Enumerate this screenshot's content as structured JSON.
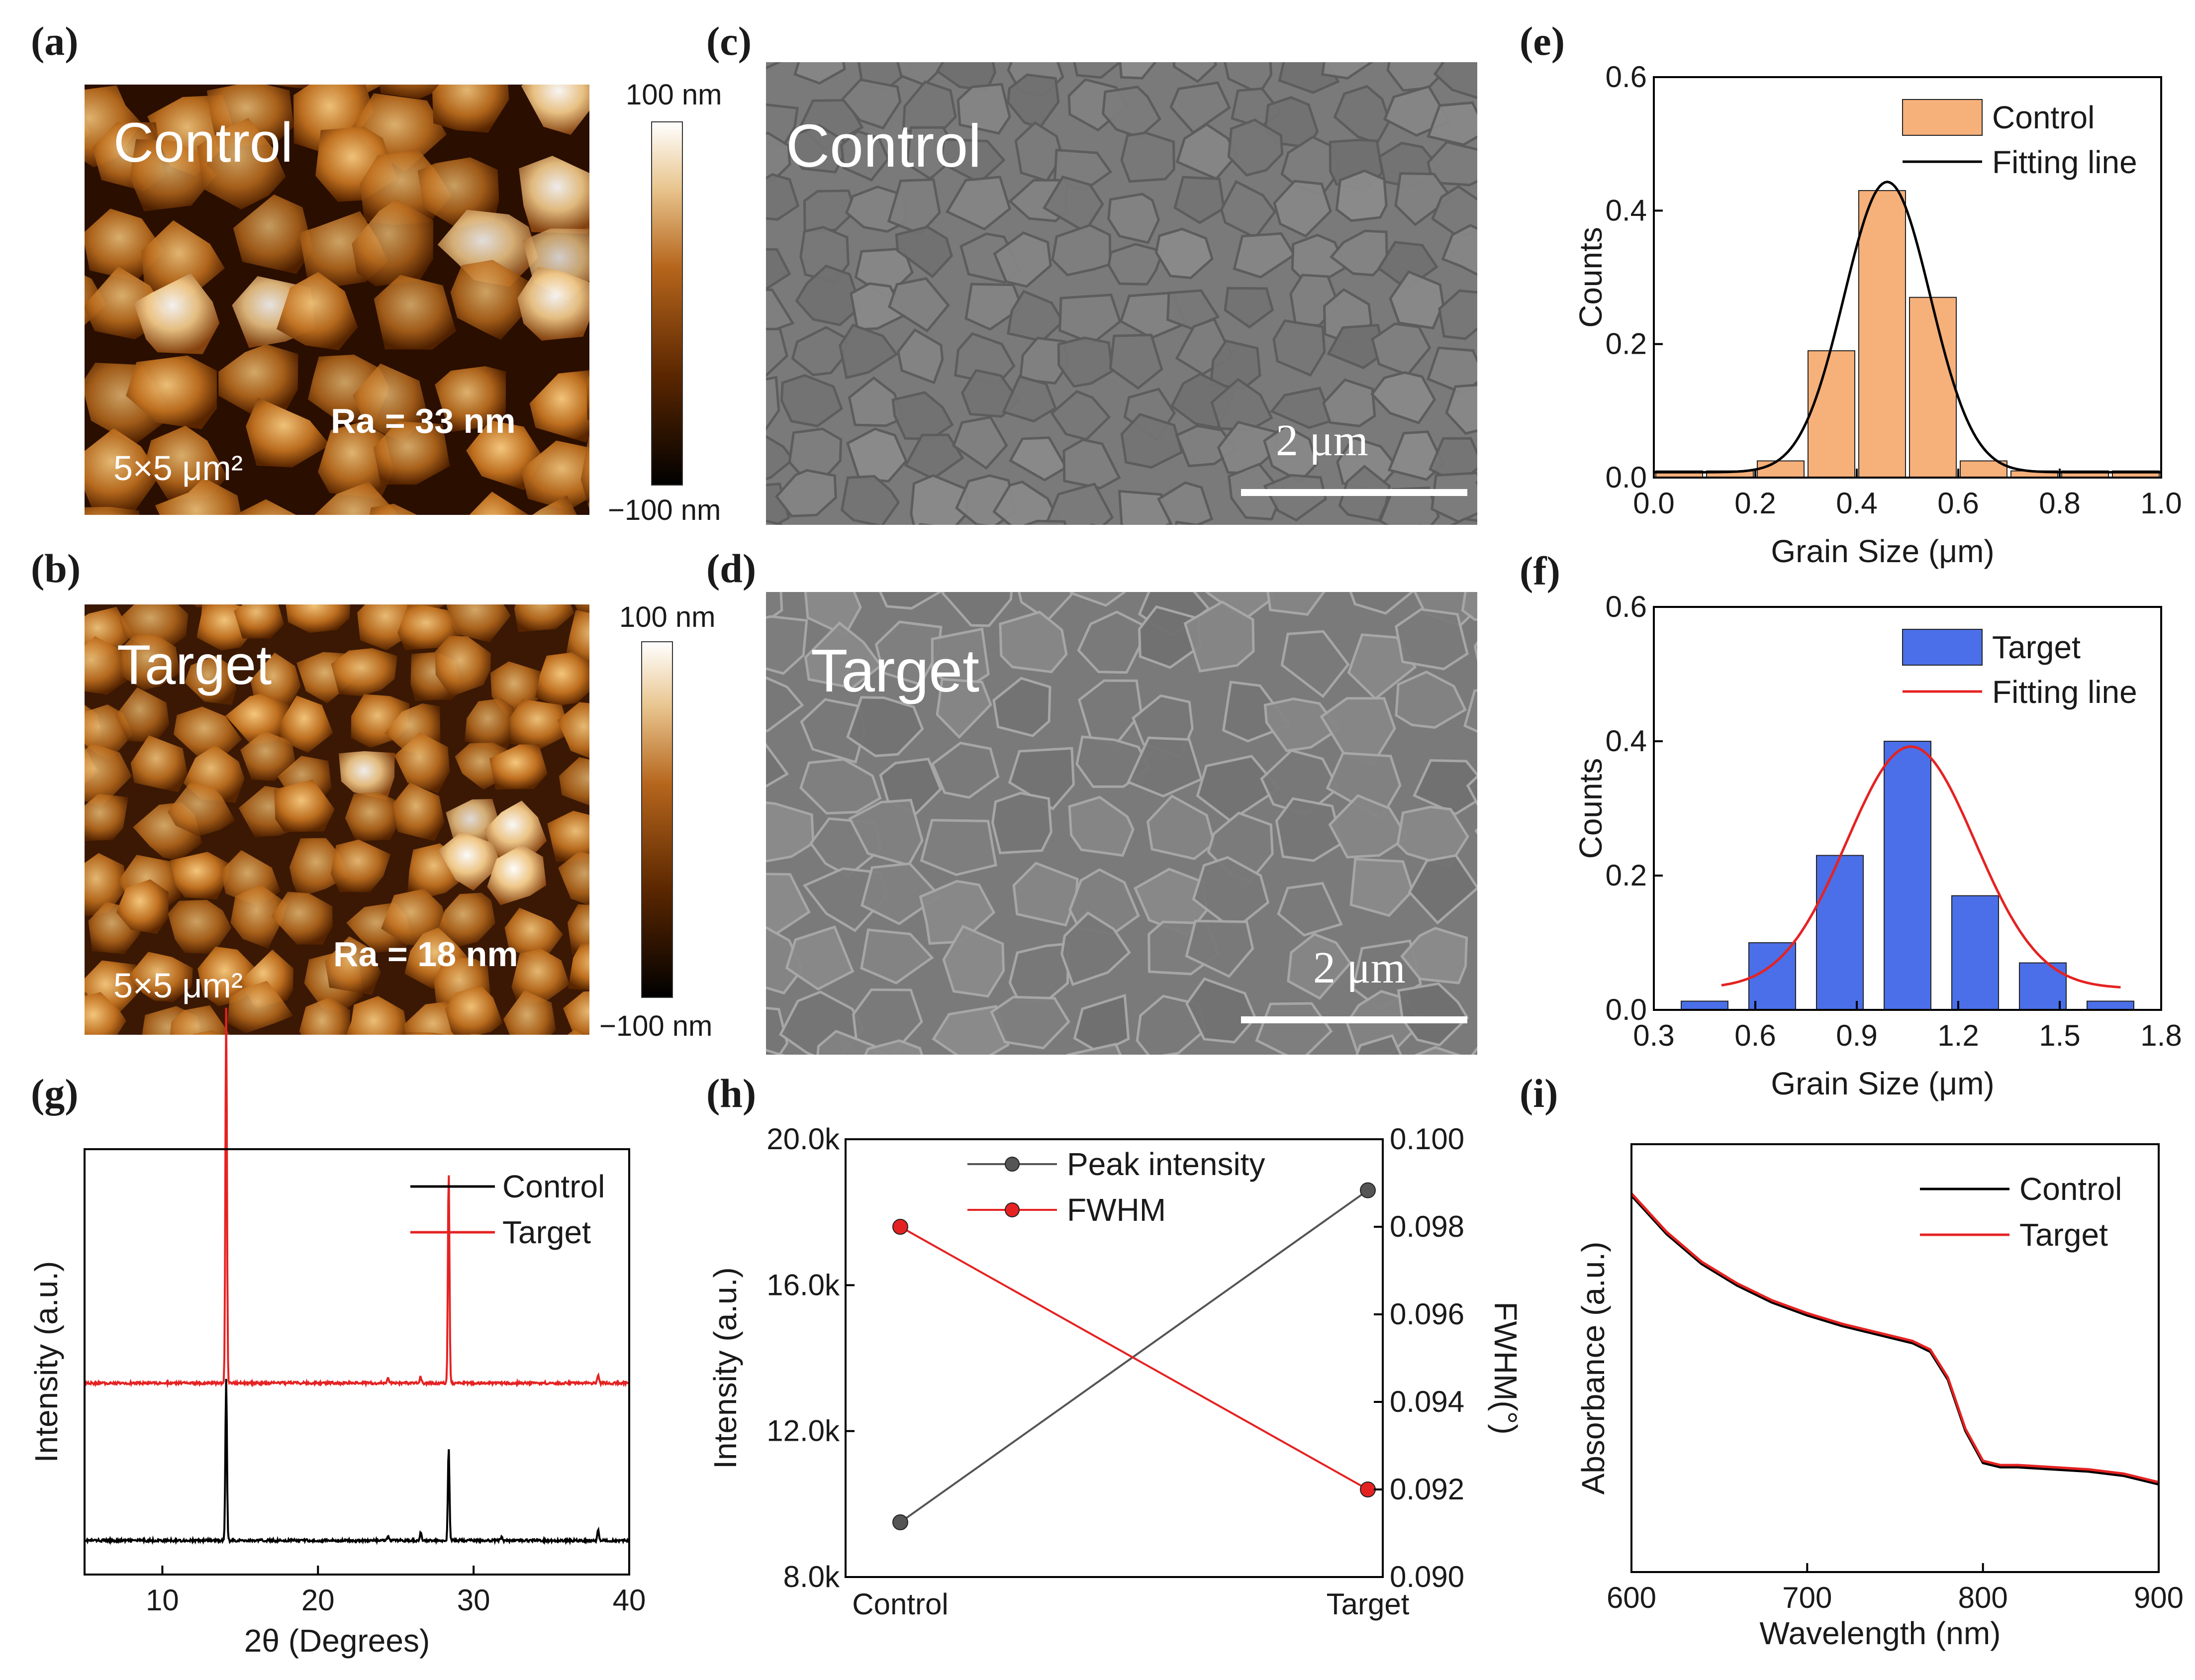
{
  "panels": {
    "a": {
      "label": "(a)",
      "sample": "Control",
      "ra": "Ra = 33 nm",
      "area": "5×5 μm²",
      "cb_top": "100 nm",
      "cb_bottom": "−100 nm"
    },
    "b": {
      "label": "(b)",
      "sample": "Target",
      "ra": "Ra = 18 nm",
      "area": "5×5 μm²",
      "cb_top": "100 nm",
      "cb_bottom": "−100 nm"
    },
    "c": {
      "label": "(c)",
      "sample": "Control",
      "scale": "2 μm"
    },
    "d": {
      "label": "(d)",
      "sample": "Target",
      "scale": "2 μm"
    },
    "e": {
      "label": "(e)"
    },
    "f": {
      "label": "(f)"
    },
    "g": {
      "label": "(g)"
    },
    "h": {
      "label": "(h)"
    },
    "i": {
      "label": "(i)"
    }
  },
  "chart_data": [
    {
      "id": "e",
      "type": "bar",
      "xlabel": "Grain Size (μm)",
      "ylabel": "Counts",
      "xlim": [
        0,
        1.0
      ],
      "ylim": [
        0,
        0.6
      ],
      "xticks": [
        "0.0",
        "0.2",
        "0.4",
        "0.6",
        "0.8",
        "1.0"
      ],
      "yticks": [
        "0.0",
        "0.2",
        "0.4",
        "0.6"
      ],
      "bar_width": 0.1,
      "bar_centers": [
        0.05,
        0.15,
        0.25,
        0.35,
        0.45,
        0.55,
        0.65,
        0.75,
        0.85,
        0.95
      ],
      "values": [
        0.01,
        0.01,
        0.025,
        0.19,
        0.43,
        0.27,
        0.025,
        0.01,
        0.01,
        0.01
      ],
      "fit": {
        "type": "gaussian",
        "center": 0.46,
        "sigma": 0.085,
        "peak": 0.435,
        "base": 0.008
      },
      "legend": [
        {
          "name": "Control",
          "kind": "bar"
        },
        {
          "name": "Fitting line",
          "kind": "line"
        }
      ],
      "colors": {
        "bar": "#f6b07a",
        "fit": "#000000"
      }
    },
    {
      "id": "f",
      "type": "bar",
      "xlabel": "Grain Size (μm)",
      "ylabel": "Counts",
      "xlim": [
        0.3,
        1.8
      ],
      "ylim": [
        0,
        0.6
      ],
      "xticks": [
        "0.3",
        "0.6",
        "0.9",
        "1.2",
        "1.5",
        "1.8"
      ],
      "yticks": [
        "0.0",
        "0.2",
        "0.4",
        "0.6"
      ],
      "bar_width": 0.15,
      "bar_centers": [
        0.45,
        0.65,
        0.85,
        1.05,
        1.25,
        1.45,
        1.65
      ],
      "values": [
        0.013,
        0.1,
        0.23,
        0.4,
        0.17,
        0.07,
        0.013
      ],
      "fit": {
        "type": "gaussian",
        "center": 1.06,
        "sigma": 0.19,
        "peak": 0.36,
        "base": 0.032,
        "xrange": [
          0.5,
          1.68
        ]
      },
      "legend": [
        {
          "name": "Target",
          "kind": "bar"
        },
        {
          "name": "Fitting line",
          "kind": "line"
        }
      ],
      "colors": {
        "bar": "#4a6fe8",
        "fit": "#e52222"
      }
    },
    {
      "id": "g",
      "type": "line",
      "xlabel": "2θ (Degrees)",
      "ylabel": "Intensity (a.u.)",
      "xlim": [
        5,
        40
      ],
      "xticks": [
        "10",
        "20",
        "30",
        "40"
      ],
      "series": [
        {
          "name": "Control",
          "color": "#000000",
          "baseline": 0.08,
          "peaks": [
            {
              "x": 14.1,
              "h": 0.38
            },
            {
              "x": 28.4,
              "h": 0.22
            },
            {
              "x": 24.5,
              "h": 0.01
            },
            {
              "x": 26.6,
              "h": 0.02
            },
            {
              "x": 31.8,
              "h": 0.01
            },
            {
              "x": 38.0,
              "h": 0.025
            }
          ]
        },
        {
          "name": "Target",
          "color": "#e52222",
          "baseline": 0.45,
          "peaks": [
            {
              "x": 14.1,
              "h": 0.88
            },
            {
              "x": 28.4,
              "h": 0.5
            },
            {
              "x": 26.6,
              "h": 0.015
            },
            {
              "x": 24.5,
              "h": 0.01
            },
            {
              "x": 38.0,
              "h": 0.02
            }
          ]
        }
      ]
    },
    {
      "id": "h",
      "type": "line",
      "categories": [
        "Control",
        "Target"
      ],
      "ylabel": "Intensity (a.u.)",
      "y2label": "FWHM(°)",
      "ylim": [
        8000,
        20000
      ],
      "y2lim": [
        0.09,
        0.1
      ],
      "yticks": [
        "8.0k",
        "12.0k",
        "16.0k",
        "20.0k"
      ],
      "y2ticks": [
        "0.090",
        "0.092",
        "0.094",
        "0.096",
        "0.098",
        "0.100"
      ],
      "series": [
        {
          "name": "Peak intensity",
          "axis": "left",
          "values": [
            9500,
            18600
          ],
          "color": "#555555"
        },
        {
          "name": "FWHM",
          "axis": "right",
          "values": [
            0.098,
            0.092
          ],
          "color": "#e52222"
        }
      ]
    },
    {
      "id": "i",
      "type": "line",
      "xlabel": "Wavelength (nm)",
      "ylabel": "Absorbance (a.u.)",
      "xlim": [
        600,
        900
      ],
      "ylim": [
        0,
        1
      ],
      "xticks": [
        "600",
        "700",
        "800",
        "900"
      ],
      "series": [
        {
          "name": "Control",
          "color": "#000000",
          "x": [
            600,
            620,
            640,
            660,
            680,
            700,
            720,
            740,
            760,
            770,
            780,
            790,
            800,
            810,
            820,
            840,
            860,
            880,
            900
          ],
          "y": [
            0.88,
            0.79,
            0.72,
            0.67,
            0.63,
            0.6,
            0.575,
            0.555,
            0.535,
            0.515,
            0.45,
            0.33,
            0.255,
            0.245,
            0.245,
            0.24,
            0.235,
            0.225,
            0.205
          ]
        },
        {
          "name": "Target",
          "color": "#e52222",
          "x": [
            600,
            620,
            640,
            660,
            680,
            700,
            720,
            740,
            760,
            770,
            780,
            790,
            800,
            810,
            820,
            840,
            860,
            880,
            900
          ],
          "y": [
            0.885,
            0.795,
            0.725,
            0.675,
            0.635,
            0.605,
            0.58,
            0.56,
            0.54,
            0.52,
            0.455,
            0.335,
            0.26,
            0.25,
            0.25,
            0.245,
            0.24,
            0.23,
            0.21
          ]
        }
      ]
    }
  ],
  "colors": {
    "afm_dark": "#2a0e00",
    "afm_mid": "#b05a14",
    "afm_light": "#ffffff",
    "sem_gray": "#7d7d7d"
  }
}
